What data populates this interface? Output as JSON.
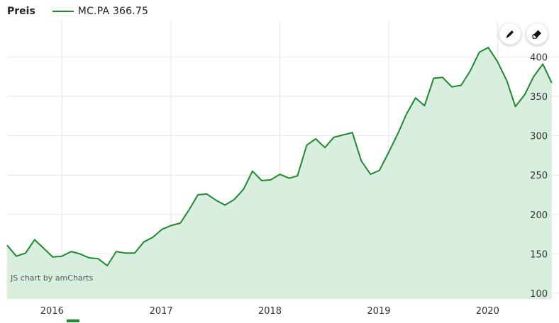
{
  "legend": {
    "title": "Preis",
    "series_label": "MC.PA 366.75"
  },
  "credit": "JS chart by amCharts",
  "toolbar": {
    "pencil": "pencil-icon",
    "eraser": "eraser-icon"
  },
  "colors": {
    "line": "#1e8a2e",
    "fill": "#d8efdf",
    "grid": "#e6e6e6"
  },
  "chart_data": {
    "type": "area",
    "title": "",
    "xlabel": "",
    "ylabel": "",
    "ylim": [
      100,
      400
    ],
    "y_ticks": [
      100,
      150,
      200,
      250,
      300,
      350,
      400
    ],
    "x_ticks": [
      "2016",
      "2017",
      "2018",
      "2019",
      "2020"
    ],
    "grid": true,
    "series": [
      {
        "name": "MC.PA",
        "x": [
          "2015-07-01",
          "2015-08-01",
          "2015-09-01",
          "2015-10-01",
          "2015-11-01",
          "2015-12-01",
          "2016-01-01",
          "2016-02-01",
          "2016-03-01",
          "2016-04-01",
          "2016-05-01",
          "2016-06-01",
          "2016-07-01",
          "2016-08-01",
          "2016-09-01",
          "2016-10-01",
          "2016-11-01",
          "2016-12-01",
          "2017-01-01",
          "2017-02-01",
          "2017-03-01",
          "2017-04-01",
          "2017-05-01",
          "2017-06-01",
          "2017-07-01",
          "2017-08-01",
          "2017-09-01",
          "2017-10-01",
          "2017-11-01",
          "2017-12-01",
          "2018-01-01",
          "2018-02-01",
          "2018-03-01",
          "2018-04-01",
          "2018-05-01",
          "2018-06-01",
          "2018-07-01",
          "2018-08-01",
          "2018-09-01",
          "2018-10-01",
          "2018-11-01",
          "2018-12-01",
          "2019-01-01",
          "2019-02-01",
          "2019-03-01",
          "2019-04-01",
          "2019-05-01",
          "2019-06-01",
          "2019-07-01",
          "2019-08-01",
          "2019-09-01",
          "2019-10-01",
          "2019-11-01",
          "2019-12-01",
          "2020-01-01",
          "2020-02-01",
          "2020-03-01",
          "2020-04-01",
          "2020-05-01",
          "2020-06-01",
          "2020-07-01"
        ],
        "values": [
          161,
          147,
          151,
          168,
          157,
          146,
          147,
          153,
          150,
          145,
          144,
          135,
          153,
          151,
          151,
          165,
          171,
          181,
          186,
          189,
          205,
          225,
          226,
          218,
          212,
          219,
          232,
          255,
          243,
          244,
          251,
          246,
          249,
          288,
          296,
          285,
          298,
          301,
          304,
          268,
          251,
          256,
          279,
          303,
          327,
          348,
          338,
          373,
          374,
          362,
          364,
          382,
          406,
          412,
          394,
          370,
          337,
          352,
          375,
          391,
          367
        ]
      }
    ]
  }
}
